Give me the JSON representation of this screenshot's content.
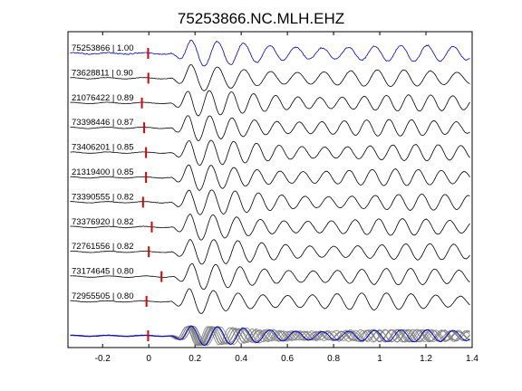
{
  "chart_data": {
    "type": "line",
    "title": "75253866.NC.MLH.EHZ",
    "xlabel": "",
    "ylabel": "",
    "xlim": [
      -0.35,
      1.4
    ],
    "xticks": [
      -0.2,
      0,
      0.2,
      0.4,
      0.6,
      0.8,
      1,
      1.2,
      1.4
    ],
    "xtick_labels": [
      "-0.2",
      "0",
      "0.2",
      "0.4",
      "0.6",
      "0.8",
      "1",
      "1.2",
      "1.4"
    ],
    "grid": false,
    "legend": "none",
    "colors": {
      "reference": "#0000cc",
      "trace": "#000000",
      "stack": "#808080",
      "pick": "#dd0000"
    },
    "traces": [
      {
        "label": "75253866 | 1.00",
        "pick_time": -0.003,
        "color": "reference"
      },
      {
        "label": "73628811 | 0.90",
        "pick_time": -0.002,
        "color": "trace"
      },
      {
        "label": "21076422 | 0.89",
        "pick_time": -0.03,
        "color": "trace"
      },
      {
        "label": "73398446 | 0.87",
        "pick_time": -0.02,
        "color": "trace"
      },
      {
        "label": "73406201 | 0.85",
        "pick_time": -0.012,
        "color": "trace"
      },
      {
        "label": "21319400 | 0.85",
        "pick_time": -0.012,
        "color": "trace"
      },
      {
        "label": "73390555 | 0.82",
        "pick_time": -0.025,
        "color": "trace"
      },
      {
        "label": "73376920 | 0.82",
        "pick_time": 0.013,
        "color": "trace"
      },
      {
        "label": "72761556 | 0.82",
        "pick_time": 0.0,
        "color": "trace"
      },
      {
        "label": "73174645 | 0.80",
        "pick_time": 0.055,
        "color": "trace"
      },
      {
        "label": "72955505 | 0.80",
        "pick_time": -0.01,
        "color": "trace"
      }
    ],
    "stack": {
      "overlay_count": 10,
      "reference_color": "reference"
    }
  }
}
